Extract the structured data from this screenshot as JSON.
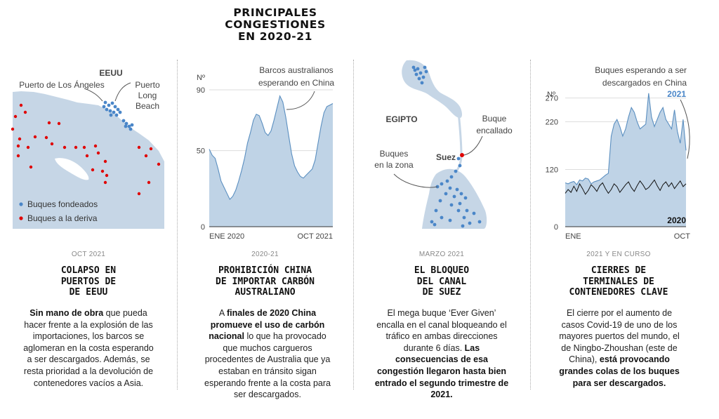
{
  "title": "PRINCIPALES CONGESTIONES EN 2020-21",
  "colors": {
    "sea": "#c6d6e6",
    "land": "#ffffff",
    "area_fill": "#bfd3e6",
    "area_line": "#5b8fc0",
    "dot_blue": "#4a86c8",
    "dot_red": "#e00000",
    "line_2020": "#111111",
    "label_2021": "#4a86c8"
  },
  "panels": [
    {
      "date": "OCT 2021",
      "title": "COLAPSO EN\nPUERTOS DE\nDE EEUU",
      "body": [
        {
          "t": "Sin mano de obra",
          "b": true
        },
        {
          "t": " que pueda hacer frente a la explosión de las importaciones, los barcos se aglomeran en la costa esperando a ser descargados. Además, se resta prioridad a la devolución de contenedores vacíos a Asia.",
          "b": false
        }
      ],
      "map": {
        "country": "EEUU",
        "port_la": "Puerto de Los Ángeles",
        "port_lb": "Puerto\nLong\nBeach",
        "legend": [
          {
            "label": "Buques fondeados",
            "icon": "blue-dot-icon"
          },
          {
            "label": "Buques a la deriva",
            "icon": "red-dot-icon"
          }
        ]
      }
    },
    {
      "date": "2020-21",
      "title": "PROHIBICIÓN CHINA\nDE IMPORTAR CARBÓN\nAUSTRALIANO",
      "body": [
        {
          "t": "A ",
          "b": false
        },
        {
          "t": "finales de 2020 China promueve el uso de carbón nacional",
          "b": true
        },
        {
          "t": " lo que ha provocado que muchos cargueros procedentes de Australia que ya estaban en tránsito sigan esperando frente a la costa para ser descargados.",
          "b": false
        }
      ]
    },
    {
      "date": "MARZO 2021",
      "title": "EL BLOQUEO\nDEL CANAL\nDE SUEZ",
      "body": [
        {
          "t": "El mega buque ‘Ever Given’ encalla en el canal bloqueando el tráfico en ambas direcciones durante 6 días. ",
          "b": false
        },
        {
          "t": "Las consecuencias de esa congestión llegaron hasta bien entrado el segundo trimestre de 2021.",
          "b": true
        }
      ],
      "map": {
        "country": "EGIPTO",
        "city": "Suez",
        "stuck": "Buque\nencallado",
        "zone": "Buques\nen la zona"
      }
    },
    {
      "date": "2021 Y EN CURSO",
      "title": "CIERRES DE\nTERMINALES DE\nCONTENEDORES CLAVE",
      "body": [
        {
          "t": "El cierre por el aumento de casos Covid-19 de uno de los mayores puertos del mundo, el de Ningbo-Zhoushan (este de China), ",
          "b": false
        },
        {
          "t": "está provocando grandes colas de los buques para ser descargados.",
          "b": true
        }
      ]
    }
  ],
  "chart_data": [
    {
      "type": "area",
      "title": "",
      "ylabel": "Nº",
      "annotation": "Barcos australianos\nesperando en China",
      "x_ticks": [
        "ENE 2020",
        "OCT 2021"
      ],
      "y_ticks": [
        0,
        50,
        90
      ],
      "ylim": [
        0,
        90
      ],
      "grid": true,
      "series": [
        {
          "values": [
            51,
            47,
            45,
            38,
            30,
            26,
            22,
            18,
            20,
            24,
            30,
            37,
            45,
            55,
            62,
            70,
            74,
            73,
            68,
            62,
            60,
            63,
            70,
            78,
            86,
            82,
            72,
            60,
            48,
            40,
            36,
            33,
            32,
            34,
            36,
            38,
            44,
            55,
            66,
            75,
            79,
            80,
            81
          ]
        }
      ]
    },
    {
      "type": "area",
      "title": "",
      "ylabel": "Nº",
      "annotation": "Buques esperando a ser\ndescargados en China",
      "x_ticks": [
        "ENE",
        "OCT"
      ],
      "y_ticks": [
        0,
        120,
        220,
        270
      ],
      "ylim": [
        0,
        290
      ],
      "grid": true,
      "series": [
        {
          "name": "2021",
          "type": "area",
          "values": [
            92,
            90,
            93,
            95,
            88,
            98,
            96,
            102,
            100,
            90,
            94,
            96,
            98,
            103,
            108,
            112,
            190,
            215,
            225,
            210,
            190,
            205,
            230,
            250,
            240,
            220,
            205,
            210,
            215,
            280,
            230,
            210,
            225,
            240,
            250,
            225,
            215,
            205,
            245,
            200,
            175,
            225,
            160
          ]
        },
        {
          "name": "2020",
          "type": "line",
          "values": [
            70,
            78,
            72,
            85,
            74,
            90,
            80,
            68,
            76,
            88,
            82,
            74,
            86,
            92,
            80,
            70,
            78,
            90,
            84,
            72,
            80,
            88,
            94,
            82,
            74,
            86,
            96,
            88,
            78,
            82,
            90,
            98,
            86,
            76,
            88,
            94,
            84,
            92,
            80,
            88,
            96,
            84,
            90
          ]
        }
      ]
    }
  ]
}
